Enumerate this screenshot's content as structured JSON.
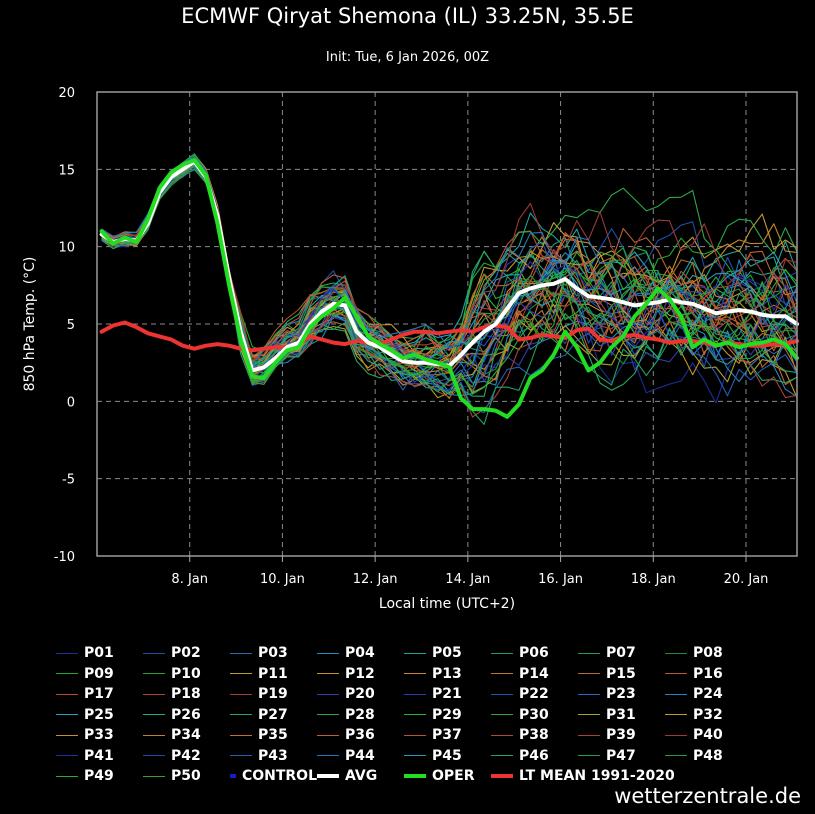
{
  "title": "ECMWF Qiryat Shemona (IL) 33.25N, 35.5E",
  "subtitle": "Init: Tue, 6 Jan 2026, 00Z",
  "credit": "wetterzentrale.de",
  "colors": {
    "background": "#000000",
    "grid": "#8a8a8a",
    "avg": "#ffffff",
    "oper": "#22dd22",
    "ltmean": "#ee3333",
    "control": "#1a1acc"
  },
  "chart_data": {
    "type": "line",
    "title": "ECMWF Qiryat Shemona (IL) 33.25N, 35.5E",
    "subtitle": "Init: Tue, 6 Jan 2026, 00Z",
    "xlabel": "Local time (UTC+2)",
    "ylabel": "850 hPa Temp. (°C)",
    "ylim": [
      -10,
      20
    ],
    "yticks": [
      -10,
      -5,
      0,
      5,
      10,
      15,
      20
    ],
    "xlim_days": [
      6.0,
      21.1
    ],
    "xticks": [
      {
        "day": 8,
        "label": "8. Jan"
      },
      {
        "day": 10,
        "label": "10. Jan"
      },
      {
        "day": 12,
        "label": "12. Jan"
      },
      {
        "day": 14,
        "label": "14. Jan"
      },
      {
        "day": 16,
        "label": "16. Jan"
      },
      {
        "day": 18,
        "label": "18. Jan"
      },
      {
        "day": 20,
        "label": "20. Jan"
      }
    ],
    "grid": true,
    "x_days": [
      6.1,
      6.35,
      6.6,
      6.85,
      7.1,
      7.35,
      7.6,
      7.85,
      8.1,
      8.35,
      8.6,
      8.85,
      9.1,
      9.35,
      9.6,
      9.85,
      10.1,
      10.35,
      10.6,
      10.85,
      11.1,
      11.35,
      11.6,
      11.85,
      12.1,
      12.35,
      12.6,
      12.85,
      13.1,
      13.35,
      13.6,
      13.85,
      14.1,
      14.35,
      14.6,
      14.85,
      15.1,
      15.35,
      15.6,
      15.85,
      16.1,
      16.35,
      16.6,
      16.85,
      17.1,
      17.35,
      17.6,
      17.85,
      18.1,
      18.35,
      18.6,
      18.85,
      19.1,
      19.35,
      19.6,
      19.85,
      20.1,
      20.35,
      20.6,
      20.85,
      21.1
    ],
    "series": [
      {
        "name": "AVG",
        "values": [
          10.8,
          10.3,
          10.5,
          10.4,
          11.5,
          13.5,
          14.5,
          15.0,
          15.5,
          14.5,
          12.0,
          8.0,
          4.5,
          2.0,
          2.2,
          2.8,
          3.5,
          3.8,
          5.0,
          5.8,
          6.3,
          6.2,
          4.5,
          3.8,
          3.5,
          3.0,
          2.6,
          2.5,
          2.5,
          2.4,
          2.3,
          3.0,
          3.8,
          4.5,
          5.0,
          6.0,
          7.0,
          7.3,
          7.5,
          7.6,
          7.9,
          7.3,
          6.8,
          6.7,
          6.6,
          6.4,
          6.2,
          6.3,
          6.4,
          6.6,
          6.4,
          6.3,
          6.0,
          5.7,
          5.8,
          5.9,
          5.8,
          5.6,
          5.5,
          5.5,
          5.0
        ]
      },
      {
        "name": "OPER",
        "values": [
          11.0,
          10.2,
          10.6,
          10.3,
          11.8,
          13.8,
          14.8,
          15.3,
          15.6,
          14.6,
          11.5,
          7.5,
          4.0,
          1.6,
          1.5,
          2.5,
          3.3,
          3.5,
          4.8,
          5.5,
          6.0,
          6.7,
          5.5,
          4.2,
          3.7,
          3.3,
          2.8,
          3.0,
          2.7,
          2.5,
          2.2,
          0.2,
          -0.5,
          -0.5,
          -0.6,
          -1.0,
          -0.2,
          1.5,
          2.0,
          3.0,
          4.5,
          3.5,
          2.0,
          2.5,
          3.5,
          4.2,
          5.5,
          6.3,
          7.3,
          6.6,
          5.5,
          3.5,
          4.0,
          3.6,
          3.8,
          3.5,
          3.7,
          3.8,
          4.0,
          3.7,
          2.8
        ]
      },
      {
        "name": "LT MEAN 1991-2020",
        "values": [
          4.5,
          4.9,
          5.1,
          4.8,
          4.4,
          4.2,
          4.0,
          3.6,
          3.4,
          3.6,
          3.7,
          3.6,
          3.4,
          3.3,
          3.4,
          3.5,
          3.5,
          3.7,
          4.2,
          4.0,
          3.8,
          3.7,
          3.9,
          3.8,
          3.7,
          4.0,
          4.3,
          4.5,
          4.5,
          4.4,
          4.5,
          4.6,
          4.5,
          4.8,
          4.9,
          4.8,
          4.0,
          4.1,
          4.3,
          4.2,
          4.1,
          4.6,
          4.7,
          4.0,
          3.9,
          4.2,
          4.3,
          4.1,
          4.0,
          3.8,
          3.9,
          3.9,
          3.8,
          3.6,
          3.8,
          3.7,
          3.6,
          3.6,
          3.7,
          3.7,
          3.9
        ]
      }
    ],
    "ensemble": [
      {
        "name": "P01",
        "color": "#1a2f9e"
      },
      {
        "name": "P02",
        "color": "#1b4fa8"
      },
      {
        "name": "P03",
        "color": "#1f6fb5"
      },
      {
        "name": "P04",
        "color": "#1f8fbf"
      },
      {
        "name": "P05",
        "color": "#1aa5a0"
      },
      {
        "name": "P06",
        "color": "#199970"
      },
      {
        "name": "P07",
        "color": "#1e9b55"
      },
      {
        "name": "P08",
        "color": "#1c8c3a"
      },
      {
        "name": "P09",
        "color": "#22a830"
      },
      {
        "name": "P10",
        "color": "#2e9d28"
      },
      {
        "name": "P11",
        "color": "#b8a020"
      },
      {
        "name": "P12",
        "color": "#c49428"
      },
      {
        "name": "P13",
        "color": "#c8862a"
      },
      {
        "name": "P14",
        "color": "#c4762a"
      },
      {
        "name": "P15",
        "color": "#c0662c"
      },
      {
        "name": "P16",
        "color": "#bc5a2e"
      },
      {
        "name": "P17",
        "color": "#b84c30"
      },
      {
        "name": "P18",
        "color": "#b44232"
      },
      {
        "name": "P19",
        "color": "#a04030"
      },
      {
        "name": "P20",
        "color": "#3a3aa8"
      },
      {
        "name": "P21",
        "color": "#2a3ab0"
      },
      {
        "name": "P22",
        "color": "#2350b8"
      },
      {
        "name": "P23",
        "color": "#2868c0"
      },
      {
        "name": "P24",
        "color": "#2a82c4"
      },
      {
        "name": "P25",
        "color": "#29a0c0"
      },
      {
        "name": "P26",
        "color": "#22a890"
      },
      {
        "name": "P27",
        "color": "#25a868"
      },
      {
        "name": "P28",
        "color": "#2ea84c"
      },
      {
        "name": "P29",
        "color": "#26b53c"
      },
      {
        "name": "P30",
        "color": "#30a838"
      },
      {
        "name": "P31",
        "color": "#a8a22c"
      },
      {
        "name": "P32",
        "color": "#c09a30"
      },
      {
        "name": "P33",
        "color": "#c88e30"
      },
      {
        "name": "P34",
        "color": "#c47e2e"
      },
      {
        "name": "P35",
        "color": "#c07030"
      },
      {
        "name": "P36",
        "color": "#bc6230"
      },
      {
        "name": "P37",
        "color": "#b85634"
      },
      {
        "name": "P38",
        "color": "#b44836"
      },
      {
        "name": "P39",
        "color": "#a84038"
      },
      {
        "name": "P40",
        "color": "#9e3a36"
      },
      {
        "name": "P41",
        "color": "#2030a4"
      },
      {
        "name": "P42",
        "color": "#2046ac"
      },
      {
        "name": "P43",
        "color": "#2460b8"
      },
      {
        "name": "P44",
        "color": "#2478bc"
      },
      {
        "name": "P45",
        "color": "#2498b8"
      },
      {
        "name": "P46",
        "color": "#20a080"
      },
      {
        "name": "P47",
        "color": "#22a05e"
      },
      {
        "name": "P48",
        "color": "#269844"
      },
      {
        "name": "P49",
        "color": "#28ac34"
      },
      {
        "name": "P50",
        "color": "#36a030"
      }
    ]
  },
  "legend": [
    {
      "label": "P01",
      "color": "#1a2f9e",
      "width": 1
    },
    {
      "label": "P02",
      "color": "#1b4fa8",
      "width": 1
    },
    {
      "label": "P03",
      "color": "#1f6fb5",
      "width": 1
    },
    {
      "label": "P04",
      "color": "#1f8fbf",
      "width": 1
    },
    {
      "label": "P05",
      "color": "#1aa5a0",
      "width": 1
    },
    {
      "label": "P06",
      "color": "#199970",
      "width": 1
    },
    {
      "label": "P07",
      "color": "#1e9b55",
      "width": 1
    },
    {
      "label": "P08",
      "color": "#1c8c3a",
      "width": 1
    },
    {
      "label": "P09",
      "color": "#22a830",
      "width": 1
    },
    {
      "label": "P10",
      "color": "#2e9d28",
      "width": 1
    },
    {
      "label": "P11",
      "color": "#b8a020",
      "width": 1
    },
    {
      "label": "P12",
      "color": "#c49428",
      "width": 1
    },
    {
      "label": "P13",
      "color": "#c8862a",
      "width": 1
    },
    {
      "label": "P14",
      "color": "#c4762a",
      "width": 1
    },
    {
      "label": "P15",
      "color": "#c0662c",
      "width": 1
    },
    {
      "label": "P16",
      "color": "#bc5a2e",
      "width": 1
    },
    {
      "label": "P17",
      "color": "#b84c30",
      "width": 1
    },
    {
      "label": "P18",
      "color": "#b44232",
      "width": 1
    },
    {
      "label": "P19",
      "color": "#a04030",
      "width": 1
    },
    {
      "label": "P20",
      "color": "#3a3aa8",
      "width": 1
    },
    {
      "label": "P21",
      "color": "#2a3ab0",
      "width": 1
    },
    {
      "label": "P22",
      "color": "#2350b8",
      "width": 1
    },
    {
      "label": "P23",
      "color": "#2868c0",
      "width": 1
    },
    {
      "label": "P24",
      "color": "#2a82c4",
      "width": 1
    },
    {
      "label": "P25",
      "color": "#29a0c0",
      "width": 1
    },
    {
      "label": "P26",
      "color": "#22a890",
      "width": 1
    },
    {
      "label": "P27",
      "color": "#25a868",
      "width": 1
    },
    {
      "label": "P28",
      "color": "#2ea84c",
      "width": 1
    },
    {
      "label": "P29",
      "color": "#26b53c",
      "width": 1
    },
    {
      "label": "P30",
      "color": "#30a838",
      "width": 1
    },
    {
      "label": "P31",
      "color": "#a8a22c",
      "width": 1
    },
    {
      "label": "P32",
      "color": "#c09a30",
      "width": 1
    },
    {
      "label": "P33",
      "color": "#c88e30",
      "width": 1
    },
    {
      "label": "P34",
      "color": "#c47e2e",
      "width": 1
    },
    {
      "label": "P35",
      "color": "#c07030",
      "width": 1
    },
    {
      "label": "P36",
      "color": "#bc6230",
      "width": 1
    },
    {
      "label": "P37",
      "color": "#b85634",
      "width": 1
    },
    {
      "label": "P38",
      "color": "#b44836",
      "width": 1
    },
    {
      "label": "P39",
      "color": "#a84038",
      "width": 1
    },
    {
      "label": "P40",
      "color": "#9e3a36",
      "width": 1
    },
    {
      "label": "P41",
      "color": "#2030a4",
      "width": 1
    },
    {
      "label": "P42",
      "color": "#2046ac",
      "width": 1
    },
    {
      "label": "P43",
      "color": "#2460b8",
      "width": 1
    },
    {
      "label": "P44",
      "color": "#2478bc",
      "width": 1
    },
    {
      "label": "P45",
      "color": "#2498b8",
      "width": 1
    },
    {
      "label": "P46",
      "color": "#20a080",
      "width": 1
    },
    {
      "label": "P47",
      "color": "#22a05e",
      "width": 1
    },
    {
      "label": "P48",
      "color": "#269844",
      "width": 1
    },
    {
      "label": "P49",
      "color": "#28ac34",
      "width": 1
    },
    {
      "label": "P50",
      "color": "#36a030",
      "width": 1
    },
    {
      "label": "CONTROL",
      "color": "#1a1acc",
      "width": 4
    },
    {
      "label": "AVG",
      "color": "#ffffff",
      "width": 4
    },
    {
      "label": "OPER",
      "color": "#22dd22",
      "width": 4
    },
    {
      "label": "LT MEAN 1991-2020",
      "color": "#ee3333",
      "width": 4
    }
  ]
}
